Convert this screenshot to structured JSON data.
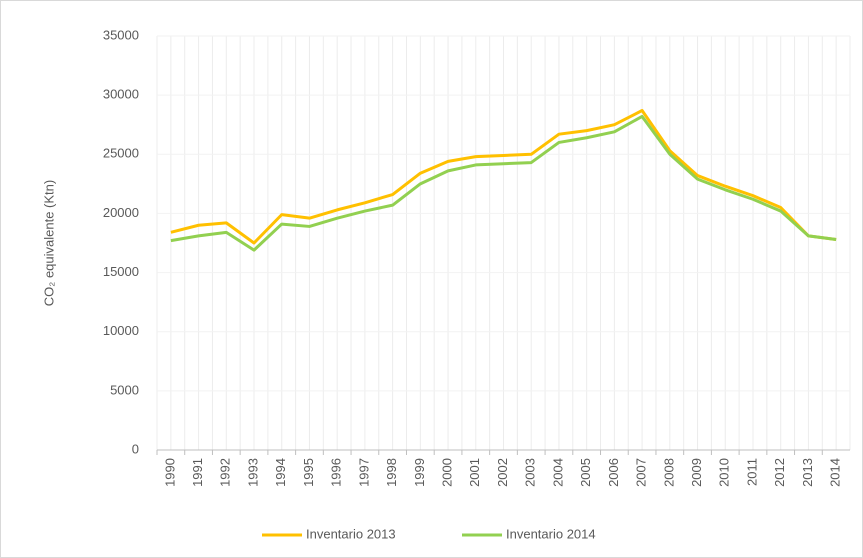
{
  "chart_data": {
    "type": "line",
    "y_label": "CO₂ equivalente (Ktn)",
    "categories": [
      "1990",
      "1991",
      "1992",
      "1993",
      "1994",
      "1995",
      "1996",
      "1997",
      "1998",
      "1999",
      "2000",
      "2001",
      "2002",
      "2003",
      "2004",
      "2005",
      "2006",
      "2007",
      "2008",
      "2009",
      "2010",
      "2011",
      "2012",
      "2013",
      "2014"
    ],
    "series": [
      {
        "name": "Inventario 2013",
        "color": "#ffc000",
        "values": [
          18400,
          19000,
          19200,
          17500,
          19900,
          19600,
          20300,
          20900,
          21600,
          23400,
          24400,
          24800,
          24900,
          25000,
          26700,
          27000,
          27500,
          28700,
          25300,
          23200,
          22300,
          21500,
          20500,
          18100,
          17800
        ]
      },
      {
        "name": "Inventario 2014",
        "color": "#92d050",
        "values": [
          17700,
          18100,
          18400,
          16900,
          19100,
          18900,
          19600,
          20200,
          20700,
          22500,
          23600,
          24100,
          24200,
          24300,
          26000,
          26400,
          26900,
          28200,
          25000,
          22900,
          22000,
          21200,
          20200,
          18100,
          17800
        ]
      }
    ],
    "ylim": [
      0,
      35000
    ],
    "yticks": [
      0,
      5000,
      10000,
      15000,
      20000,
      25000,
      30000,
      35000
    ],
    "grid": true,
    "legend": "bottom"
  }
}
